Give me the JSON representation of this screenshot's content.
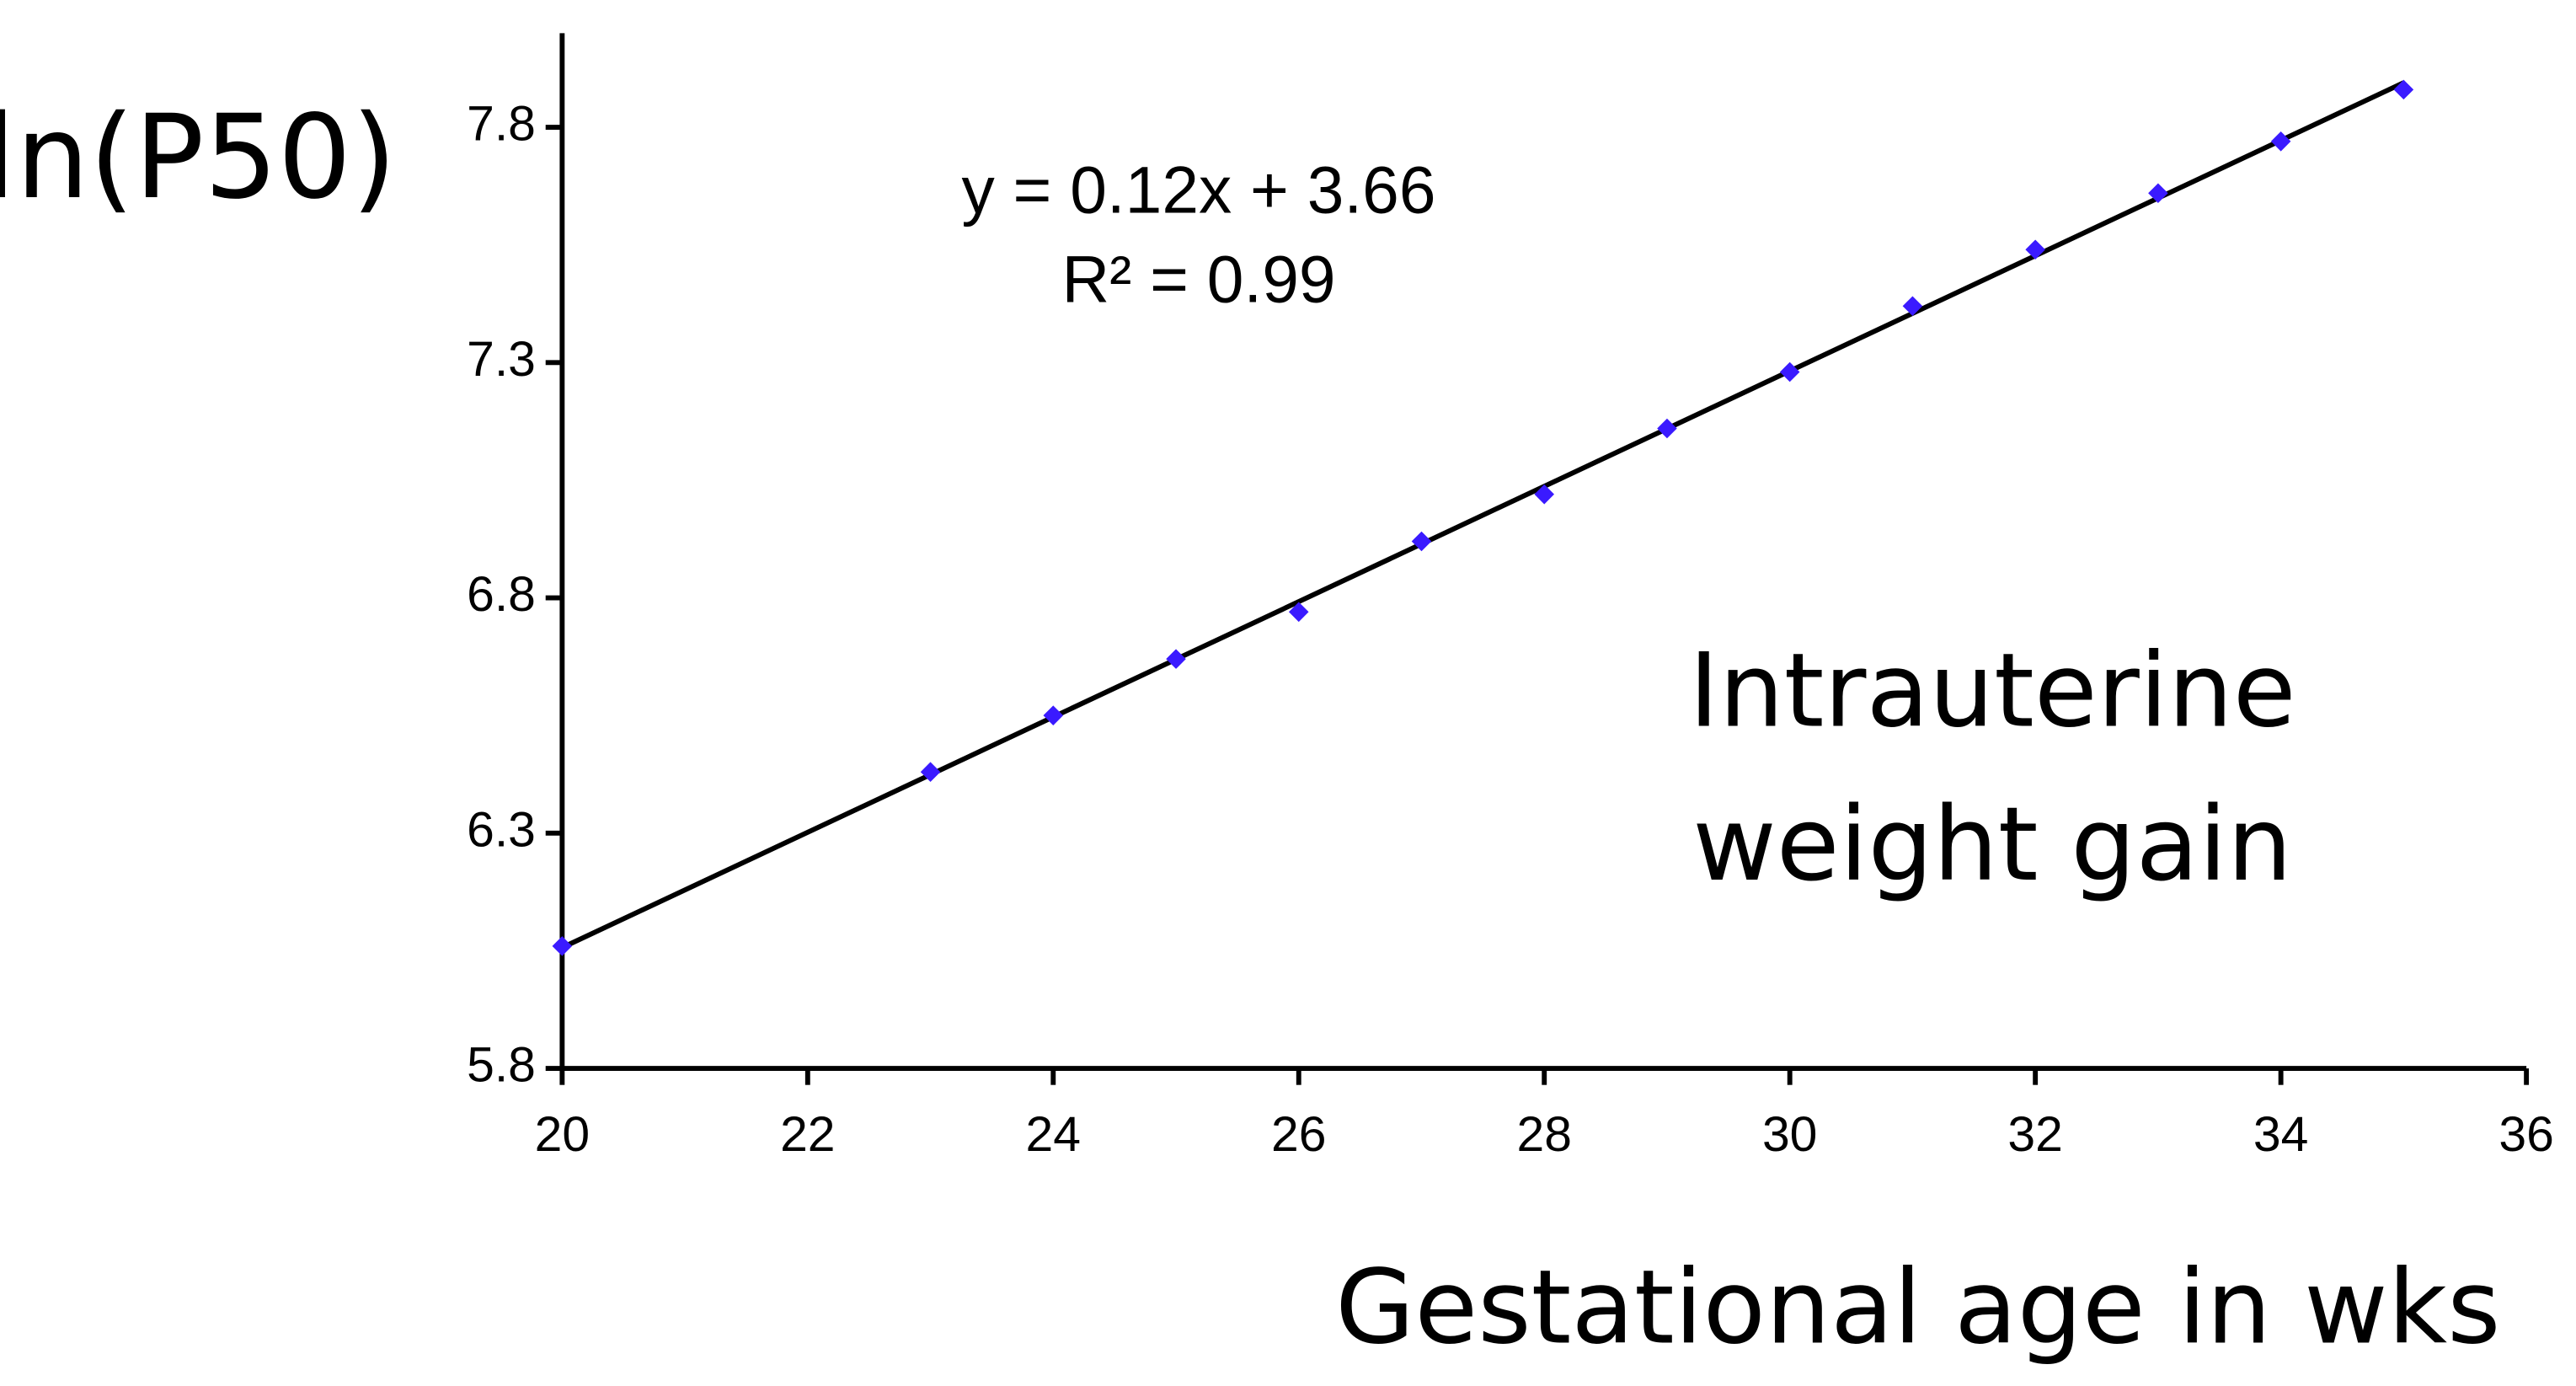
{
  "chart_data": {
    "type": "scatter",
    "y_label": "ln(P50)",
    "x_label": "Gestational age in wks",
    "annotations": [
      "y = 0.12x + 3.66",
      "R² = 0.99",
      "Intrauterine",
      "weight gain"
    ],
    "x": [
      20,
      23,
      24,
      25,
      26,
      27,
      28,
      29,
      30,
      31,
      32,
      33,
      34,
      35
    ],
    "values": [
      6.06,
      6.43,
      6.55,
      6.67,
      6.77,
      6.92,
      7.02,
      7.16,
      7.28,
      7.42,
      7.54,
      7.66,
      7.77,
      7.88
    ],
    "color": "#3a1aff",
    "trendline": true,
    "xlim": [
      20,
      36
    ],
    "ylim": [
      5.8,
      8.0
    ],
    "xticks": [
      20,
      22,
      24,
      26,
      28,
      30,
      32,
      34,
      36
    ],
    "yticks": [
      5.8,
      6.3,
      6.8,
      7.3,
      7.8
    ],
    "grid": false
  }
}
